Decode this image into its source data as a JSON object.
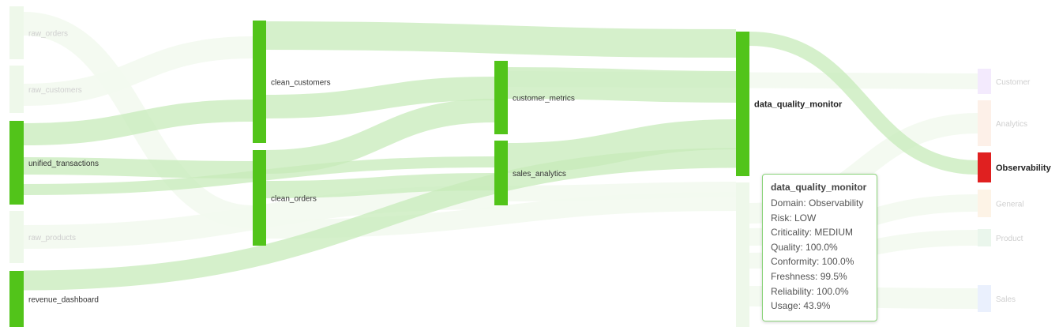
{
  "diagram": {
    "nodes": [
      {
        "id": "raw_orders",
        "label": "raw_orders",
        "color": "#eef8ea",
        "faded": true
      },
      {
        "id": "raw_customers",
        "label": "raw_customers",
        "color": "#eef8ea",
        "faded": true
      },
      {
        "id": "unified_transactions",
        "label": "unified_transactions",
        "color": "#52c41a"
      },
      {
        "id": "raw_products",
        "label": "raw_products",
        "color": "#eef8ea",
        "faded": true
      },
      {
        "id": "revenue_dashboard",
        "label": "revenue_dashboard",
        "color": "#52c41a"
      },
      {
        "id": "clean_customers",
        "label": "clean_customers",
        "color": "#52c41a"
      },
      {
        "id": "clean_orders",
        "label": "clean_orders",
        "color": "#52c41a"
      },
      {
        "id": "customer_metrics",
        "label": "customer_metrics",
        "color": "#52c41a"
      },
      {
        "id": "sales_analytics",
        "label": "sales_analytics",
        "color": "#52c41a"
      },
      {
        "id": "data_quality_monitor",
        "label": "data_quality_monitor",
        "color": "#52c41a",
        "bold": true
      },
      {
        "id": "hidden_node",
        "label": "",
        "color": "#eef8ea",
        "faded": true
      },
      {
        "id": "Customer",
        "label": "Customer",
        "color": "#f3eafd",
        "faded": true
      },
      {
        "id": "Analytics",
        "label": "Analytics",
        "color": "#fdf0e8",
        "faded": true
      },
      {
        "id": "Observability",
        "label": "Observability",
        "color": "#e02020",
        "bold": true
      },
      {
        "id": "General",
        "label": "General",
        "color": "#fdf3e6",
        "faded": true
      },
      {
        "id": "Product",
        "label": "Product",
        "color": "#eaf6ec",
        "faded": true
      },
      {
        "id": "Sales",
        "label": "Sales",
        "color": "#eaf0fd",
        "faded": true
      }
    ],
    "links": [
      {
        "source": "unified_transactions",
        "target": "clean_customers",
        "active": true
      },
      {
        "source": "unified_transactions",
        "target": "clean_orders",
        "active": true
      },
      {
        "source": "unified_transactions",
        "target": "sales_analytics",
        "active": true
      },
      {
        "source": "revenue_dashboard",
        "target": "data_quality_monitor",
        "active": true
      },
      {
        "source": "clean_customers",
        "target": "data_quality_monitor",
        "active": true
      },
      {
        "source": "clean_customers",
        "target": "customer_metrics",
        "active": true
      },
      {
        "source": "clean_orders",
        "target": "customer_metrics",
        "active": true
      },
      {
        "source": "clean_orders",
        "target": "sales_analytics",
        "active": true
      },
      {
        "source": "customer_metrics",
        "target": "data_quality_monitor",
        "active": true
      },
      {
        "source": "sales_analytics",
        "target": "data_quality_monitor",
        "active": true
      },
      {
        "source": "data_quality_monitor",
        "target": "Observability",
        "active": true
      },
      {
        "source": "raw_orders",
        "target": "clean_orders",
        "active": false
      },
      {
        "source": "raw_customers",
        "target": "clean_customers",
        "active": false
      },
      {
        "source": "raw_products",
        "target": "sales_analytics",
        "active": false
      },
      {
        "source": "clean_orders",
        "target": "hidden_node",
        "active": false
      },
      {
        "source": "sales_analytics",
        "target": "hidden_node",
        "active": false
      },
      {
        "source": "customer_metrics",
        "target": "Customer",
        "active": false
      },
      {
        "source": "hidden_node",
        "target": "Analytics",
        "active": false
      },
      {
        "source": "hidden_node",
        "target": "General",
        "active": false
      },
      {
        "source": "hidden_node",
        "target": "Product",
        "active": false
      },
      {
        "source": "hidden_node",
        "target": "Sales",
        "active": false
      }
    ],
    "colors": {
      "link_active": "#c7ebb9",
      "link_faded": "#f3f9f0"
    }
  },
  "tooltip": {
    "title": "data_quality_monitor",
    "lines": [
      "Domain: Observability",
      "Risk: LOW",
      "Criticality: MEDIUM",
      "Quality: 100.0%",
      "Conformity: 100.0%",
      "Freshness: 99.5%",
      "Reliability: 100.0%",
      "Usage: 43.9%"
    ]
  }
}
